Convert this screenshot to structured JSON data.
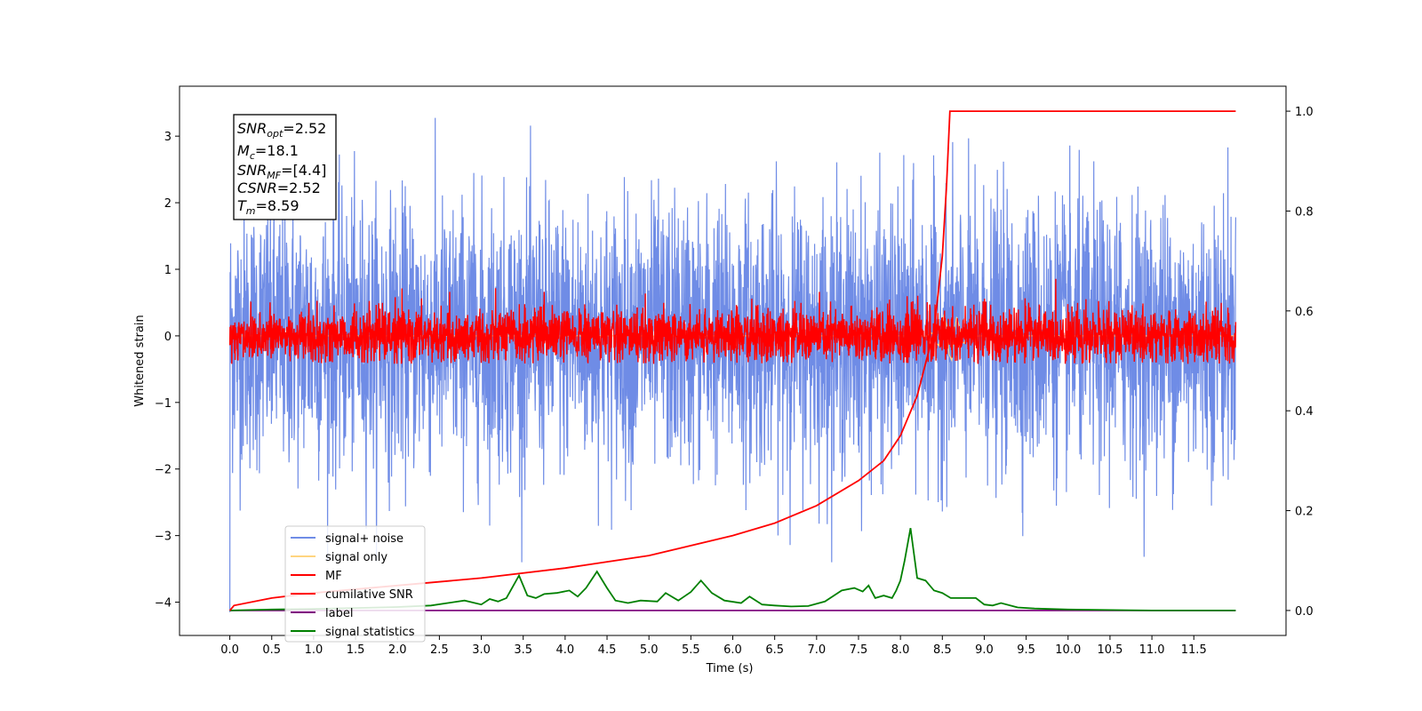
{
  "chart_data": {
    "type": "line",
    "title": "",
    "xlabel": "Time (s)",
    "ylabel": "Whitened strain",
    "xlim": [
      -0.6,
      12.6
    ],
    "ylim": [
      -4.5,
      3.75
    ],
    "ylim_right": [
      -0.05,
      1.05
    ],
    "x_ticks": [
      "0.0",
      "0.5",
      "1.0",
      "1.5",
      "2.0",
      "2.5",
      "3.0",
      "3.5",
      "4.0",
      "4.5",
      "5.0",
      "5.5",
      "6.0",
      "6.5",
      "7.0",
      "7.5",
      "8.0",
      "8.5",
      "9.0",
      "9.5",
      "10.0",
      "10.5",
      "11.0",
      "11.5"
    ],
    "y_ticks_left": [
      "3",
      "2",
      "1",
      "0",
      "−1",
      "−2",
      "−3",
      "−4"
    ],
    "y_ticks_right": [
      "1.0",
      "0.8",
      "0.6",
      "0.4",
      "0.2",
      "0.0"
    ],
    "grid": false,
    "legend_position": "lower-left",
    "colors": {
      "signal_noise": "#6f8ce6",
      "signal_only": "#ffd580",
      "mf": "#ff0000",
      "cumulative_snr": "#ff0000",
      "label": "#800080",
      "signal_statistics": "#008000"
    },
    "info_box": {
      "line1_base": "SNR",
      "line1_sub": "opt",
      "line1_val": "=2.52",
      "line2_base": "M",
      "line2_sub": "c",
      "line2_val": "=18.1",
      "line3_base": "SNR",
      "line3_sub": "MF",
      "line3_val": "=[4.4]",
      "line4_base": "CSNR",
      "line4_val": "=2.52",
      "line5_base": "T",
      "line5_sub": "m",
      "line5_val": "=8.59"
    },
    "series": [
      {
        "name": "signal+ noise",
        "description": "whitened noisy strain, roughly within [-3.4, 3.4]",
        "noise_sigma": 1.0,
        "x_range": [
          0,
          12
        ]
      },
      {
        "name": "signal only",
        "x_range": [
          0,
          12
        ],
        "values": "near zero, small bump near 8.59 s"
      },
      {
        "name": "MF",
        "noise_sigma": 0.2,
        "x_range": [
          0,
          12
        ]
      },
      {
        "name": "cumilative SNR",
        "axis": "right",
        "x": [
          0.0,
          0.05,
          0.5,
          1.0,
          2.0,
          3.0,
          4.0,
          5.0,
          6.0,
          6.5,
          7.0,
          7.5,
          7.8,
          8.0,
          8.2,
          8.4,
          8.5,
          8.55,
          8.59,
          12.0
        ],
        "y": [
          0.0,
          0.01,
          0.025,
          0.035,
          0.05,
          0.065,
          0.085,
          0.11,
          0.15,
          0.175,
          0.21,
          0.26,
          0.3,
          0.35,
          0.43,
          0.56,
          0.71,
          0.85,
          1.0,
          1.0
        ]
      },
      {
        "name": "label",
        "axis": "right",
        "x": [
          0,
          12
        ],
        "y": [
          0,
          0
        ]
      },
      {
        "name": "signal statistics",
        "axis": "right",
        "x": [
          0.0,
          0.5,
          1.0,
          1.5,
          2.0,
          2.4,
          2.6,
          2.8,
          3.0,
          3.1,
          3.2,
          3.3,
          3.45,
          3.55,
          3.65,
          3.75,
          3.9,
          4.05,
          4.15,
          4.25,
          4.38,
          4.5,
          4.6,
          4.75,
          4.9,
          5.1,
          5.2,
          5.35,
          5.5,
          5.62,
          5.75,
          5.9,
          6.1,
          6.2,
          6.35,
          6.5,
          6.7,
          6.9,
          7.1,
          7.3,
          7.45,
          7.55,
          7.62,
          7.7,
          7.8,
          7.9,
          7.95,
          8.0,
          8.05,
          8.12,
          8.2,
          8.3,
          8.4,
          8.5,
          8.6,
          8.8,
          8.9,
          9.0,
          9.1,
          9.2,
          9.4,
          9.6,
          10.0,
          11.0,
          12.0
        ],
        "y": [
          0.0,
          0.002,
          0.003,
          0.005,
          0.007,
          0.01,
          0.015,
          0.02,
          0.012,
          0.023,
          0.018,
          0.025,
          0.07,
          0.03,
          0.025,
          0.033,
          0.035,
          0.04,
          0.028,
          0.045,
          0.078,
          0.045,
          0.02,
          0.015,
          0.02,
          0.018,
          0.035,
          0.02,
          0.037,
          0.06,
          0.035,
          0.02,
          0.015,
          0.028,
          0.012,
          0.01,
          0.008,
          0.009,
          0.018,
          0.04,
          0.045,
          0.038,
          0.05,
          0.025,
          0.03,
          0.025,
          0.04,
          0.06,
          0.1,
          0.165,
          0.065,
          0.06,
          0.04,
          0.035,
          0.025,
          0.025,
          0.025,
          0.012,
          0.01,
          0.015,
          0.006,
          0.004,
          0.002,
          0.0,
          0.0
        ]
      }
    ]
  }
}
